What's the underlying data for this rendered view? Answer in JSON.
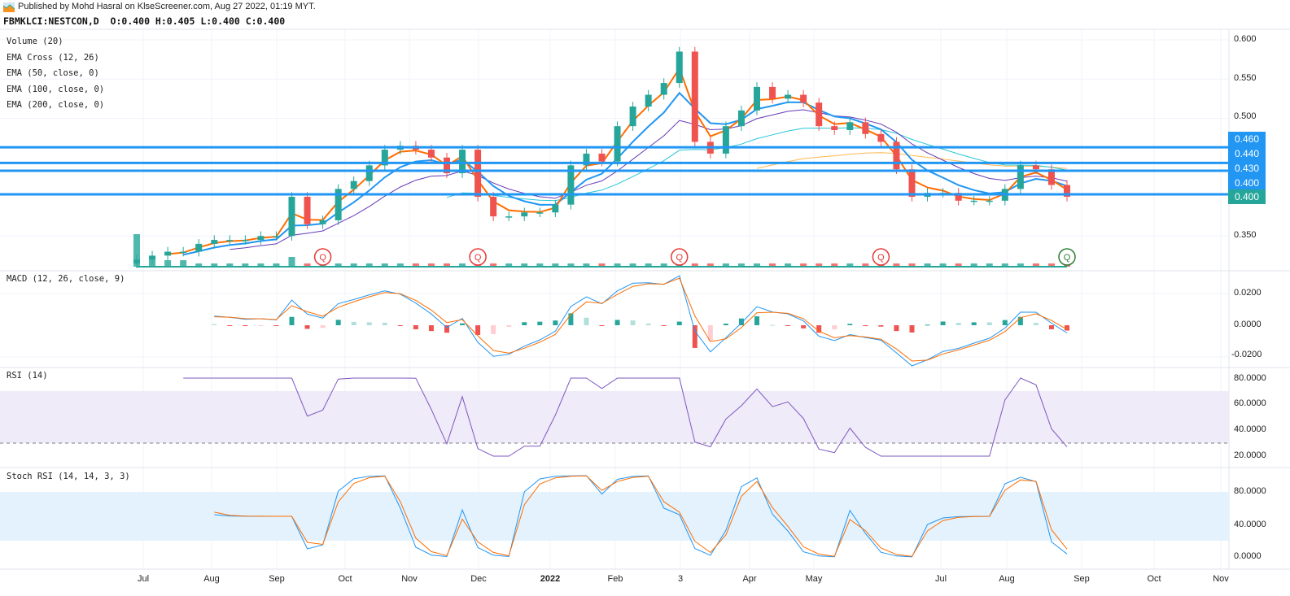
{
  "header": {
    "published": "Published by Mohd Hasral on KlseScreener.com, Aug 27 2022, 01:19 MYT.",
    "symbol_line": "FBMKLCI:NESTCON,D  O:0.400 H:0.405 L:0.400 C:0.400"
  },
  "legends": {
    "volume": "Volume (20)",
    "ema_cross": "EMA Cross (12, 26)",
    "ema50": "EMA (50, close, 0)",
    "ema100": "EMA (100, close, 0)",
    "ema200": "EMA (200, close, 0)",
    "macd": "MACD (12, 26, close, 9)",
    "rsi": "RSI (14)",
    "stoch": "Stoch RSI (14, 14, 3, 3)"
  },
  "colors": {
    "up": "#26a69a",
    "down": "#ef5350",
    "ema12": "#ff6d00",
    "ema26": "#2196f3",
    "ema50": "#673ab7",
    "ema100": "#26c6da",
    "ema200": "#ffb74d",
    "level_line": "#2196f3",
    "last_price": "#26a69a",
    "rsi": "#7e57c2",
    "rsi_band": "#efebf8",
    "stoch_band": "#e3f2fd",
    "stoch_k": "#2196f3",
    "stoch_d": "#ff6d00",
    "q_red": "#e53935",
    "q_green": "#2e7d32"
  },
  "chart_data": [
    {
      "type": "candlestick",
      "title": "FBMKLCI:NESTCON,D",
      "ylim": [
        0.31,
        0.61
      ],
      "y_ticks": [
        "0.600",
        "0.550",
        "0.500",
        "0.350"
      ],
      "x_ticks": [
        "Jul",
        "Aug",
        "Sep",
        "Oct",
        "Nov",
        "Dec",
        "2022",
        "Feb",
        "3",
        "Apr",
        "May",
        "Jul",
        "Aug",
        "Sep",
        "Oct",
        "Nov"
      ],
      "dates": [
        "2021-06-28",
        "2021-07-05",
        "2021-07-12",
        "2021-07-19",
        "2021-07-26",
        "2021-08-02",
        "2021-08-09",
        "2021-08-16",
        "2021-08-23",
        "2021-08-30",
        "2021-09-06",
        "2021-09-13",
        "2021-09-20",
        "2021-09-27",
        "2021-10-04",
        "2021-10-11",
        "2021-10-18",
        "2021-10-25",
        "2021-11-01",
        "2021-11-08",
        "2021-11-15",
        "2021-11-22",
        "2021-11-29",
        "2021-12-06",
        "2021-12-13",
        "2021-12-20",
        "2021-12-27",
        "2022-01-03",
        "2022-01-10",
        "2022-01-17",
        "2022-01-24",
        "2022-01-31",
        "2022-02-07",
        "2022-02-14",
        "2022-02-21",
        "2022-02-28",
        "2022-03-07",
        "2022-03-14",
        "2022-03-21",
        "2022-03-28",
        "2022-04-04",
        "2022-04-11",
        "2022-04-18",
        "2022-04-25",
        "2022-05-02",
        "2022-05-09",
        "2022-05-16",
        "2022-05-23",
        "2022-05-30",
        "2022-06-06",
        "2022-06-13",
        "2022-06-20",
        "2022-06-27",
        "2022-07-04",
        "2022-07-11",
        "2022-07-18",
        "2022-07-25",
        "2022-08-01",
        "2022-08-08",
        "2022-08-15",
        "2022-08-22"
      ],
      "close": [
        0.32,
        0.325,
        0.33,
        0.33,
        0.34,
        0.345,
        0.345,
        0.345,
        0.35,
        0.35,
        0.4,
        0.365,
        0.37,
        0.41,
        0.42,
        0.44,
        0.46,
        0.465,
        0.46,
        0.45,
        0.43,
        0.46,
        0.4,
        0.375,
        0.375,
        0.38,
        0.38,
        0.39,
        0.44,
        0.455,
        0.445,
        0.49,
        0.515,
        0.53,
        0.545,
        0.585,
        0.47,
        0.455,
        0.49,
        0.51,
        0.54,
        0.525,
        0.53,
        0.52,
        0.49,
        0.485,
        0.495,
        0.48,
        0.47,
        0.435,
        0.4,
        0.405,
        0.405,
        0.395,
        0.395,
        0.395,
        0.41,
        0.44,
        0.435,
        0.415,
        0.4
      ],
      "volume_relative": [
        10,
        3,
        2,
        2,
        1,
        1,
        1,
        1,
        1,
        1,
        3,
        1,
        1,
        1,
        1,
        1,
        1,
        1,
        1,
        1,
        1,
        1,
        1,
        1,
        1,
        1,
        1,
        1,
        1,
        1,
        1,
        1,
        1,
        1,
        1,
        2,
        1,
        1,
        1,
        1,
        1,
        1,
        1,
        1,
        1,
        1,
        1,
        1,
        1,
        1,
        1,
        1,
        1,
        1,
        1,
        1,
        1,
        1,
        1,
        1,
        1
      ],
      "horizontal_levels": [
        0.46,
        0.44,
        0.43,
        0.4
      ],
      "level_labels": [
        "0.460",
        "0.440",
        "0.430",
        "0.400"
      ],
      "last_price_label": "0.400",
      "earnings_markers": [
        {
          "date": "2021-09-20",
          "label": "Q",
          "color": "red"
        },
        {
          "date": "2021-11-29",
          "label": "Q",
          "color": "red"
        },
        {
          "date": "2022-02-28",
          "label": "Q",
          "color": "red"
        },
        {
          "date": "2022-05-30",
          "label": "Q",
          "color": "red"
        },
        {
          "date": "2022-08-22",
          "label": "Q",
          "color": "green"
        }
      ],
      "series": [
        {
          "name": "EMA Cross (12, 26)"
        },
        {
          "name": "EMA (50, close, 0)"
        },
        {
          "name": "EMA (100, close, 0)"
        },
        {
          "name": "EMA (200, close, 0)"
        }
      ]
    },
    {
      "type": "line",
      "title": "MACD (12, 26, close, 9)",
      "ylim": [
        -0.026,
        0.03
      ],
      "y_ticks": [
        "0.0200",
        "0.0000",
        "-0.0200"
      ]
    },
    {
      "type": "line",
      "title": "RSI (14)",
      "ylim": [
        10,
        90
      ],
      "band": [
        30,
        70
      ],
      "y_ticks": [
        "80.0000",
        "60.0000",
        "40.0000",
        "20.0000"
      ]
    },
    {
      "type": "line",
      "title": "Stoch RSI (14, 14, 3, 3)",
      "ylim": [
        -5,
        105
      ],
      "band": [
        20,
        80
      ],
      "y_ticks": [
        "80.0000",
        "40.0000",
        "0.0000"
      ]
    }
  ]
}
